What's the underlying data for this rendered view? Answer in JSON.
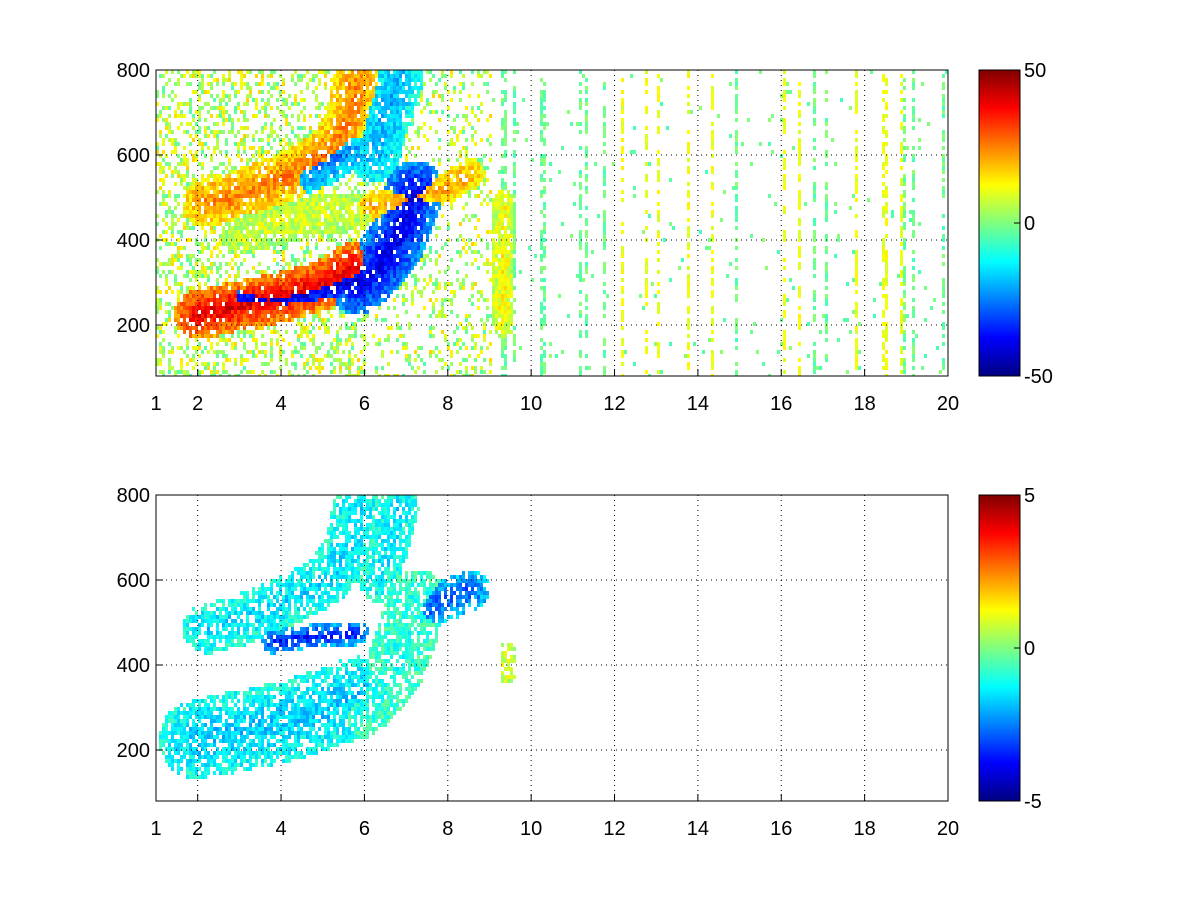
{
  "chart_data": [
    {
      "type": "heatmap",
      "title": "",
      "xlabel": "",
      "ylabel": "",
      "xlim": [
        1,
        20
      ],
      "ylim": [
        80,
        800
      ],
      "xticks": [
        1,
        2,
        4,
        6,
        8,
        10,
        12,
        14,
        16,
        18,
        20
      ],
      "xtick_labels": [
        "1",
        "2",
        "4",
        "6",
        "8",
        "10",
        "12",
        "14",
        "16",
        "18",
        "20"
      ],
      "yticks": [
        200,
        400,
        600,
        800
      ],
      "ytick_labels": [
        "200",
        "400",
        "600",
        "800"
      ],
      "grid": true,
      "colormap": "jet",
      "clim": [
        -50,
        50
      ],
      "colorbar_ticks": [
        50,
        0,
        -50
      ],
      "colorbar_tick_labels": [
        "50",
        "0",
        "-50"
      ],
      "features": [
        {
          "path": [
            [
              2.0,
              230
            ],
            [
              3.0,
              250
            ],
            [
              4.0,
              270
            ],
            [
              5.0,
              300
            ],
            [
              5.7,
              340
            ]
          ],
          "value": 40,
          "width": 25
        },
        {
          "path": [
            [
              3.0,
              260
            ],
            [
              4.0,
              265
            ],
            [
              5.0,
              290
            ],
            [
              5.8,
              310
            ]
          ],
          "value": -42,
          "width": 18
        },
        {
          "path": [
            [
              2.2,
              490
            ],
            [
              3.0,
              510
            ],
            [
              4.0,
              550
            ],
            [
              5.0,
              600
            ],
            [
              5.6,
              680
            ],
            [
              5.8,
              770
            ]
          ],
          "value": 25,
          "width": 25
        },
        {
          "path": [
            [
              4.5,
              560
            ],
            [
              5.0,
              580
            ],
            [
              5.6,
              620
            ]
          ],
          "value": -25,
          "width": 20
        },
        {
          "path": [
            [
              5.8,
              300
            ],
            [
              6.3,
              340
            ],
            [
              6.7,
              400
            ],
            [
              7.0,
              480
            ],
            [
              7.2,
              520
            ]
          ],
          "value": -40,
          "width": 30
        },
        {
          "path": [
            [
              6.0,
              480
            ],
            [
              7.0,
              500
            ],
            [
              8.0,
              530
            ],
            [
              8.5,
              560
            ]
          ],
          "value": 22,
          "width": 15
        },
        {
          "path": [
            [
              6.2,
              600
            ],
            [
              6.5,
              700
            ],
            [
              6.8,
              790
            ]
          ],
          "value": -20,
          "width": 25
        },
        {
          "path": [
            [
              3.0,
              420
            ],
            [
              4.0,
              440
            ],
            [
              5.0,
              470
            ],
            [
              5.8,
              470
            ]
          ],
          "value": 8,
          "width": 20
        },
        {
          "path": [
            [
              9.3,
              200
            ],
            [
              9.3,
              500
            ]
          ],
          "value": 12,
          "width": 10
        }
      ]
    },
    {
      "type": "heatmap",
      "title": "",
      "xlabel": "",
      "ylabel": "",
      "xlim": [
        1,
        20
      ],
      "ylim": [
        80,
        800
      ],
      "xticks": [
        1,
        2,
        4,
        6,
        8,
        10,
        12,
        14,
        16,
        18,
        20
      ],
      "xtick_labels": [
        "1",
        "2",
        "4",
        "6",
        "8",
        "10",
        "12",
        "14",
        "16",
        "18",
        "20"
      ],
      "yticks": [
        200,
        400,
        600,
        800
      ],
      "ytick_labels": [
        "200",
        "400",
        "600",
        "800"
      ],
      "grid": true,
      "colormap": "jet",
      "clim": [
        -5,
        5
      ],
      "colorbar_ticks": [
        5,
        0,
        -5
      ],
      "colorbar_tick_labels": [
        "5",
        "0",
        "-5"
      ],
      "features": [
        {
          "path": [
            [
              2.0,
              230
            ],
            [
              3.0,
              250
            ],
            [
              4.0,
              270
            ],
            [
              5.0,
              300
            ],
            [
              5.8,
              330
            ]
          ],
          "value": -1.8,
          "width": 40
        },
        {
          "path": [
            [
              2.2,
              490
            ],
            [
              3.0,
              510
            ],
            [
              4.0,
              550
            ],
            [
              5.0,
              600
            ],
            [
              5.6,
              680
            ],
            [
              5.8,
              770
            ]
          ],
          "value": -1.6,
          "width": 25
        },
        {
          "path": [
            [
              3.8,
              460
            ],
            [
              4.5,
              470
            ],
            [
              5.2,
              475
            ],
            [
              5.8,
              480
            ]
          ],
          "value": -3.5,
          "width": 12
        },
        {
          "path": [
            [
              5.8,
              300
            ],
            [
              6.3,
              340
            ],
            [
              6.7,
              400
            ],
            [
              7.0,
              480
            ],
            [
              7.2,
              560
            ]
          ],
          "value": -1.0,
          "width": 30
        },
        {
          "path": [
            [
              6.3,
              600
            ],
            [
              6.6,
              700
            ],
            [
              6.8,
              780
            ]
          ],
          "value": -1.5,
          "width": 20
        },
        {
          "path": [
            [
              7.5,
              540
            ],
            [
              8.0,
              560
            ],
            [
              8.5,
              580
            ]
          ],
          "value": -3.0,
          "width": 20
        },
        {
          "path": [
            [
              9.4,
              380
            ],
            [
              9.4,
              440
            ]
          ],
          "value": 1.0,
          "width": 8
        }
      ]
    }
  ]
}
